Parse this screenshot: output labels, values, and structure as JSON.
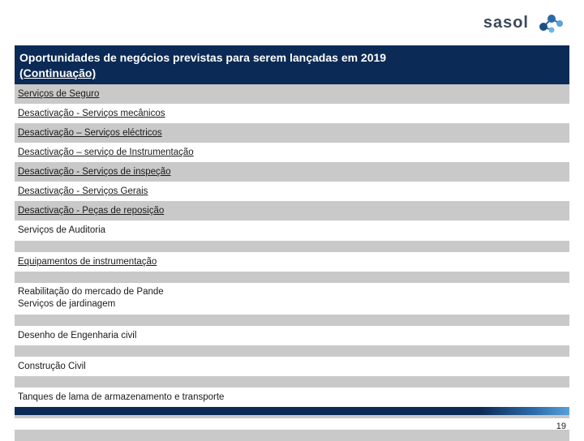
{
  "colors": {
    "title_bg": "#0b2a55",
    "row_gray": "#c9c9c9",
    "row_white": "#ffffff",
    "text": "#1a1a1a",
    "logo_text": "#3a4a5a"
  },
  "logo": {
    "text": "sasol"
  },
  "title": {
    "line1": "Oportunidades de negócios previstas para serem lançadas em 2019",
    "line2": "(Continuação)"
  },
  "rows": [
    {
      "text": "Serviços de Seguro",
      "shade": "gray",
      "underlined": true
    },
    {
      "text": "Desactivação  - Serviços mecânicos",
      "shade": "white",
      "underlined": true
    },
    {
      "text": "Desactivação – Serviços eléctricos",
      "shade": "gray",
      "underlined": true
    },
    {
      "text": "Desactivação – serviço de Instrumentação",
      "shade": "white",
      "underlined": true
    },
    {
      "text": "Desactivação - Serviços de inspeção",
      "shade": "gray",
      "underlined": true
    },
    {
      "text": "Desactivação - Serviços Gerais",
      "shade": "white",
      "underlined": true
    },
    {
      "text": "Desactivação - Peças de reposição",
      "shade": "gray",
      "underlined": true
    },
    {
      "text": "Serviços de Auditoria",
      "shade": "white",
      "underlined": false
    },
    {
      "text": "",
      "shade": "gray",
      "underlined": false,
      "blank": true
    },
    {
      "text": "Equipamentos de instrumentação",
      "shade": "white",
      "underlined": true
    },
    {
      "text": "",
      "shade": "gray",
      "underlined": false,
      "blank": true
    },
    {
      "text": "Reabilitação do mercado de Pande\nServiços de jardinagem",
      "shade": "white",
      "underlined": false,
      "multiline": true
    },
    {
      "text": "",
      "shade": "gray",
      "underlined": false,
      "blank": true
    },
    {
      "text": "Desenho de Engenharia civil",
      "shade": "white",
      "underlined": false
    },
    {
      "text": "",
      "shade": "gray",
      "underlined": false,
      "blank": true
    },
    {
      "text": "Construção Civil",
      "shade": "white",
      "underlined": false
    },
    {
      "text": "",
      "shade": "gray",
      "underlined": false,
      "blank": true
    },
    {
      "text": "Tanques de lama de armazenamento e transporte",
      "shade": "white",
      "underlined": false
    },
    {
      "text": "",
      "shade": "gray",
      "underlined": false,
      "blank": true
    },
    {
      "text": "",
      "shade": "white",
      "underlined": false,
      "blank": true
    },
    {
      "text": "",
      "shade": "gray",
      "underlined": false,
      "blank": true
    }
  ],
  "page_number": "19"
}
